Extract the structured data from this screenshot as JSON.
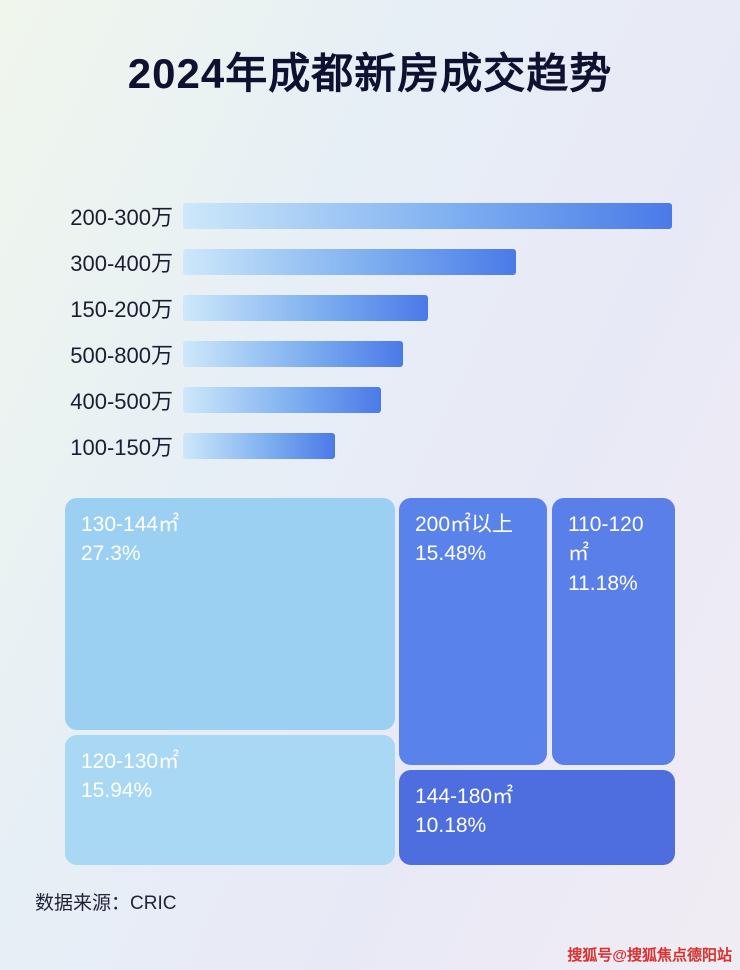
{
  "title": "2024年成都新房成交趋势",
  "source": "数据来源：CRIC",
  "watermark": "搜狐号@搜狐焦点德阳站",
  "chart_data": [
    {
      "type": "bar",
      "orientation": "horizontal",
      "title": "2024年成都新房成交趋势",
      "categories": [
        "200-300万",
        "300-400万",
        "150-200万",
        "500-800万",
        "400-500万",
        "100-150万"
      ],
      "values": [
        100,
        68,
        50,
        45,
        40.5,
        31
      ],
      "values_note": "relative bar lengths as percent of longest bar; no numeric data labels are shown in the image",
      "bar_gradient": [
        "#cde8fa",
        "#4a7ae8"
      ],
      "legend": false,
      "grid": false
    },
    {
      "type": "treemap",
      "title": "",
      "items": [
        {
          "label": "130-144㎡",
          "value": "27.3%",
          "color": "#9cd0f2"
        },
        {
          "label": "120-130㎡",
          "value": "15.94%",
          "color": "#a9d8f5"
        },
        {
          "label": "200㎡以上",
          "value": "15.48%",
          "color": "#5a82eb"
        },
        {
          "label": "110-120㎡",
          "value": "11.18%",
          "color": "#5a7fe8"
        },
        {
          "label": "144-180㎡",
          "value": "10.18%",
          "color": "#4e6edf"
        }
      ]
    }
  ]
}
